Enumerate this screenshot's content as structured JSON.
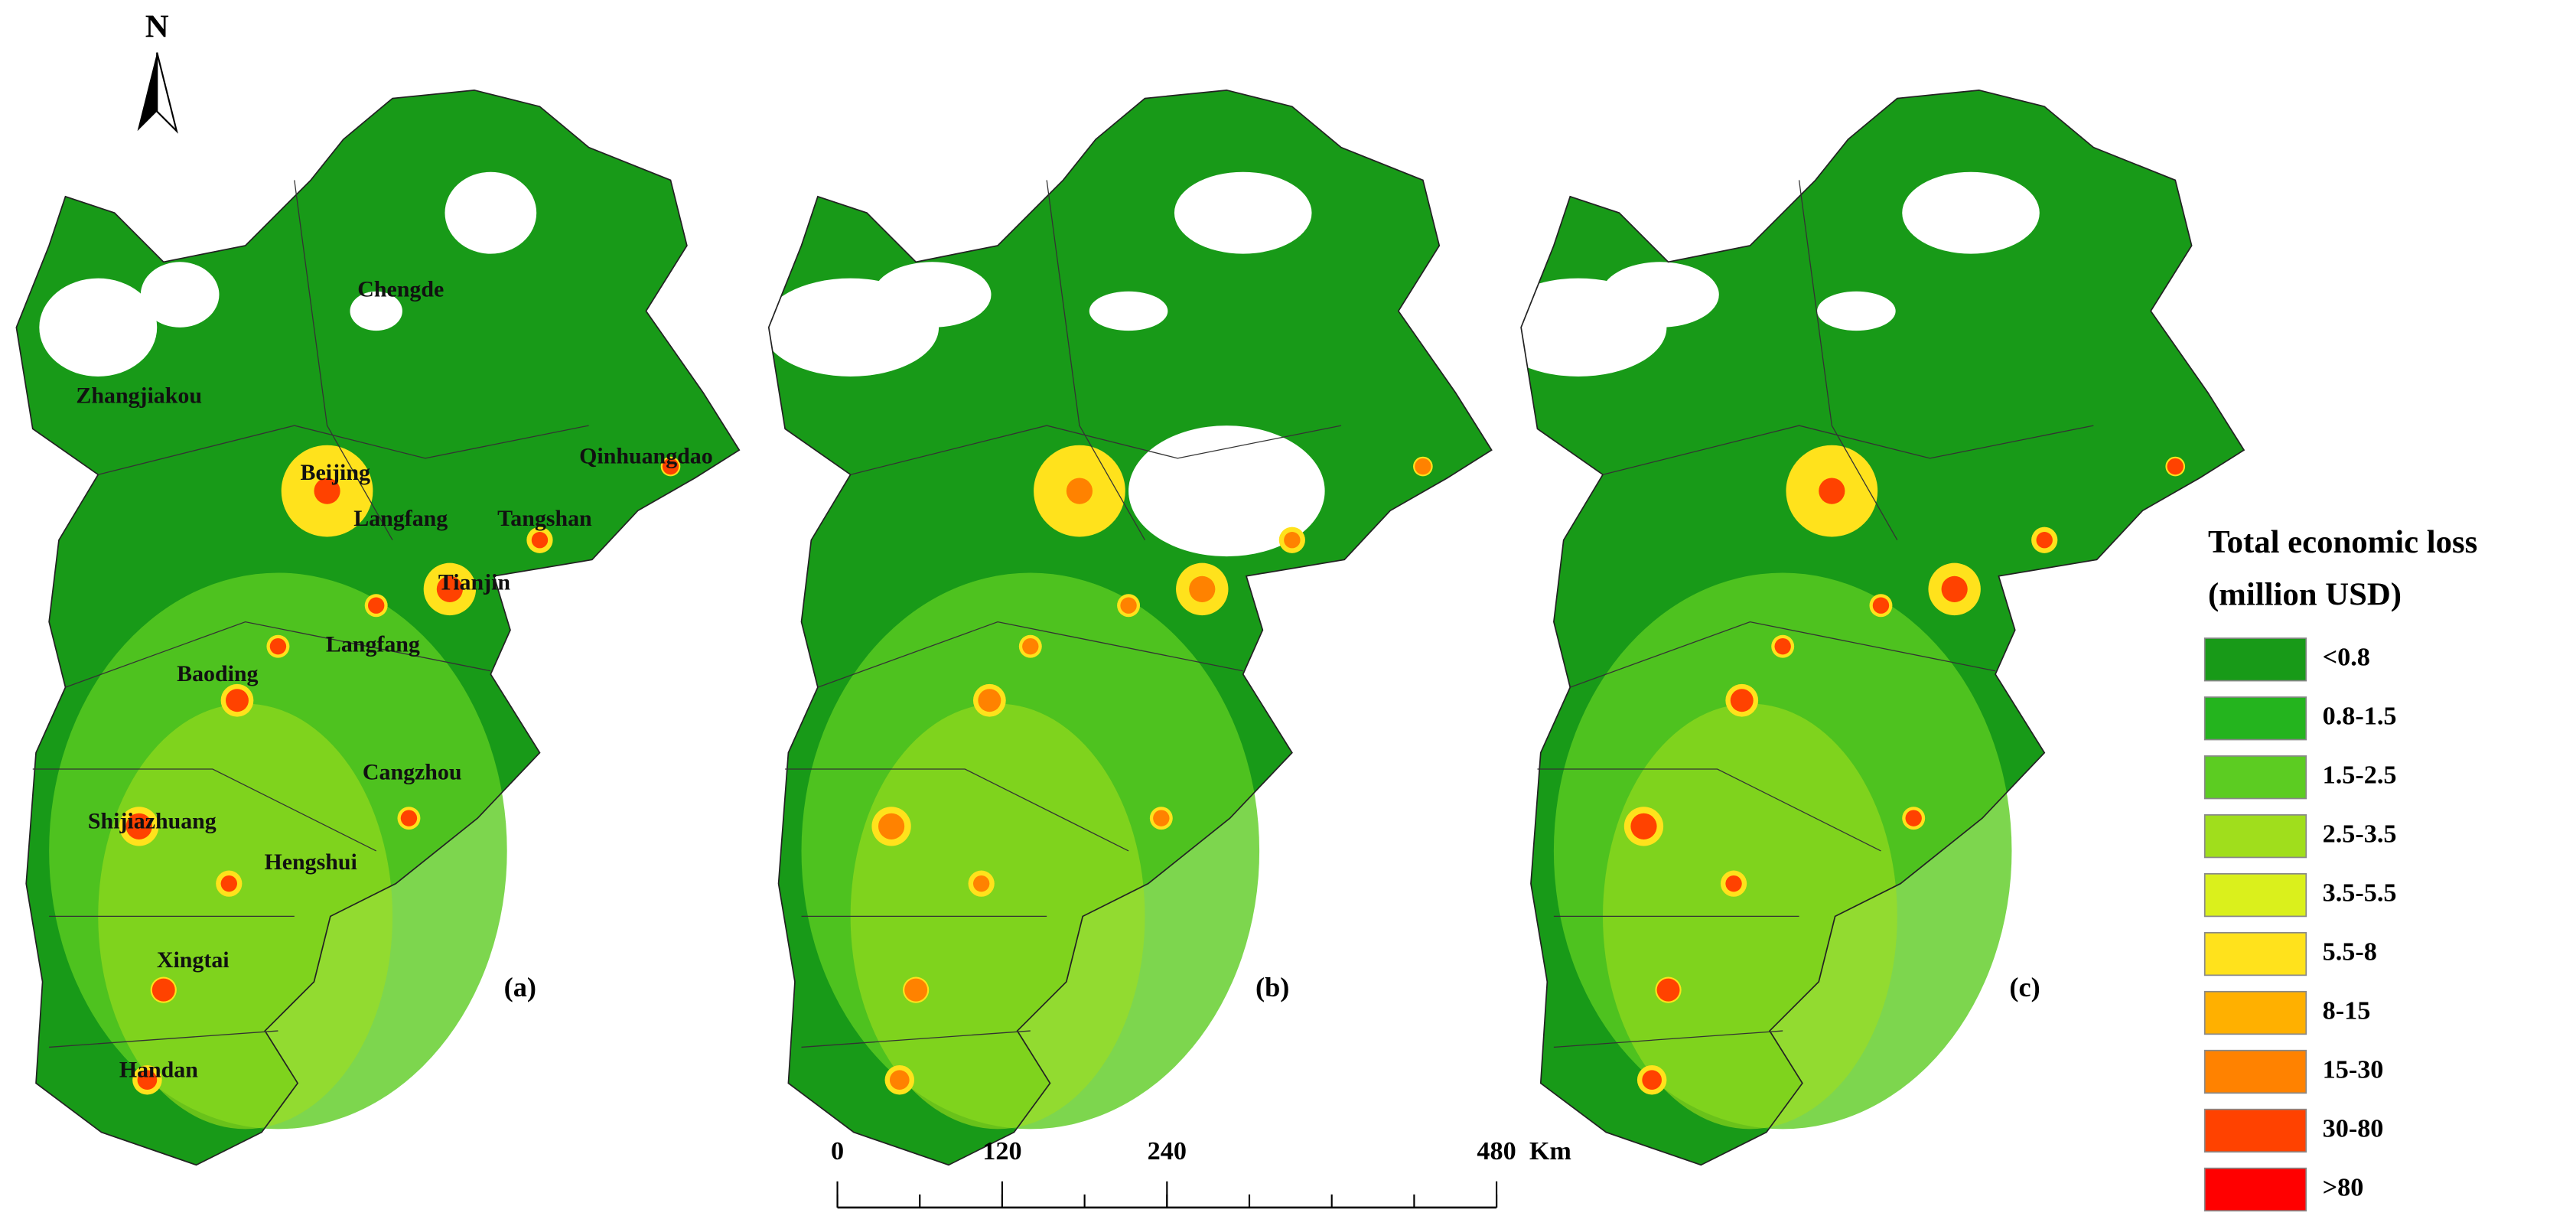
{
  "north_arrow": "N",
  "panels": [
    {
      "label": "(a)",
      "cities": [
        "Chengde",
        "Zhangjiakou",
        "Qinhuangdao",
        "Beijing",
        "Langfang",
        "Tangshan",
        "Tianjin",
        "Baoding",
        "Langfang",
        "Cangzhou",
        "Shijiazhuang",
        "Hengshui",
        "Xingtai",
        "Handan"
      ]
    },
    {
      "label": "(b)"
    },
    {
      "label": "(c)"
    }
  ],
  "legend": {
    "title": [
      "Total economic loss",
      "(million USD)"
    ],
    "items": [
      {
        "label": "<0.8",
        "color": "#189a18"
      },
      {
        "label": "0.8-1.5",
        "color": "#24b41e"
      },
      {
        "label": "1.5-2.5",
        "color": "#5ccc22"
      },
      {
        "label": "2.5-3.5",
        "color": "#a0de1c"
      },
      {
        "label": "3.5-5.5",
        "color": "#daf01c"
      },
      {
        "label": "5.5-8",
        "color": "#ffe21c"
      },
      {
        "label": "8-15",
        "color": "#ffb000"
      },
      {
        "label": "15-30",
        "color": "#ff8200"
      },
      {
        "label": "30-80",
        "color": "#ff4200"
      },
      {
        "label": ">80",
        "color": "#ff0000"
      }
    ]
  },
  "scale_bar": {
    "ticks": [
      0,
      120,
      240,
      480
    ],
    "unit": "Km"
  }
}
